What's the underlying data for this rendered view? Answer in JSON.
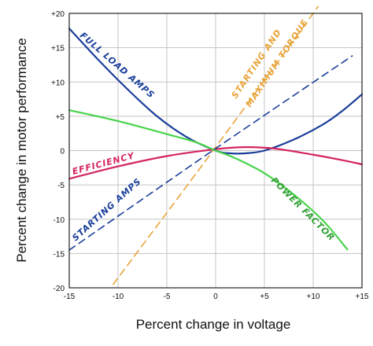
{
  "chart_data": {
    "type": "line",
    "xlabel": "Percent change in voltage",
    "ylabel": "Percent change in motor performance",
    "xlim": [
      -15,
      15
    ],
    "ylim": [
      -20,
      20
    ],
    "grid": true,
    "x_ticks": [
      -15,
      -10,
      -5,
      0,
      5,
      10,
      15
    ],
    "x_tick_labels": [
      "-15",
      "-10",
      "-5",
      "0",
      "+5",
      "+10",
      "+15"
    ],
    "y_ticks": [
      20,
      15,
      10,
      5,
      0,
      -5,
      -10,
      -15,
      -20
    ],
    "y_tick_labels": [
      "+20",
      "+15",
      "+10",
      "+5",
      "0",
      "-5",
      "-10",
      "-15",
      "-20"
    ],
    "series": [
      {
        "name": "FULL LOAD AMPS",
        "color": "#1a3e9a",
        "dash": "solid",
        "points": [
          [
            -15,
            17.8
          ],
          [
            -12,
            13.2
          ],
          [
            -9,
            8.9
          ],
          [
            -6,
            5.0
          ],
          [
            -3,
            2.0
          ],
          [
            0,
            0.0
          ],
          [
            1.5,
            -0.4
          ],
          [
            3,
            -0.4
          ],
          [
            5,
            0.0
          ],
          [
            8,
            1.6
          ],
          [
            11,
            3.8
          ],
          [
            13,
            5.8
          ],
          [
            15,
            8.2
          ]
        ]
      },
      {
        "name": "STARTING AND MAXIMUM TORQUE",
        "color": "#e8a43a",
        "dash": "dashed",
        "points": [
          [
            -10.5,
            -19.5
          ],
          [
            0,
            0.5
          ],
          [
            10.5,
            21.0
          ]
        ]
      },
      {
        "name": "EFFICIENCY",
        "color": "#d4245f",
        "dash": "solid",
        "points": [
          [
            -15,
            -4.1
          ],
          [
            -10,
            -2.3
          ],
          [
            -5,
            -0.8
          ],
          [
            0,
            0.2
          ],
          [
            3,
            0.5
          ],
          [
            6,
            0.3
          ],
          [
            10,
            -0.6
          ],
          [
            13,
            -1.4
          ],
          [
            15,
            -2.0
          ]
        ]
      },
      {
        "name": "POWER FACTOR",
        "color": "#47d44a",
        "dash": "solid",
        "points": [
          [
            -15,
            5.9
          ],
          [
            -10,
            4.3
          ],
          [
            -5,
            2.4
          ],
          [
            -2,
            1.2
          ],
          [
            0,
            0.0
          ],
          [
            2,
            -1.1
          ],
          [
            5,
            -3.3
          ],
          [
            8,
            -6.4
          ],
          [
            11,
            -10.2
          ],
          [
            13.5,
            -14.4
          ]
        ]
      },
      {
        "name": "STARTING AMPS",
        "color": "#1a3e9a",
        "dash": "dashed",
        "points": [
          [
            -15,
            -14.5
          ],
          [
            0,
            0.3
          ],
          [
            14,
            13.8
          ]
        ]
      }
    ]
  }
}
